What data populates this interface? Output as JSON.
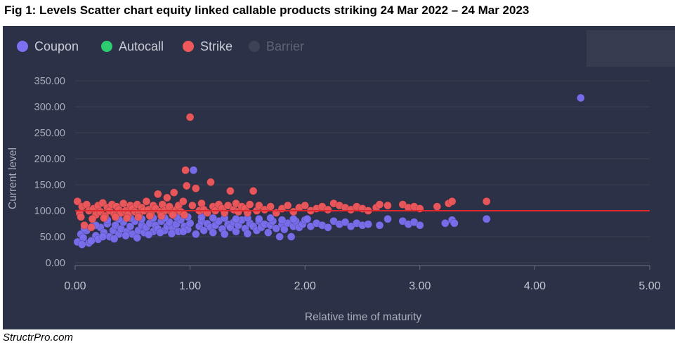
{
  "title": "Fig 1: Levels Scatter chart equity linked callable products striking 24 Mar 2022 – 24 Mar 2023",
  "footer": "StructrPro.com",
  "colors": {
    "coupon": "#7b70f0",
    "autocall": "#2ecc71",
    "strike": "#f0595c",
    "barrier": "#3d4356",
    "reference_line": "#e0282e"
  },
  "chart_data": {
    "type": "scatter",
    "xlabel": "Relative time of maturity",
    "ylabel": "Current level",
    "xlim": [
      0,
      5
    ],
    "ylim": [
      0,
      350
    ],
    "x_ticks": [
      "0.00",
      "1.00",
      "2.00",
      "3.00",
      "4.00",
      "5.00"
    ],
    "y_ticks": [
      "0.00",
      "50.00",
      "100.00",
      "150.00",
      "200.00",
      "250.00",
      "300.00",
      "350.00"
    ],
    "grid": true,
    "legend": {
      "position": "top-left",
      "entries": [
        {
          "name": "Coupon",
          "color": "#7b70f0",
          "active": true
        },
        {
          "name": "Autocall",
          "color": "#2ecc71",
          "active": true
        },
        {
          "name": "Strike",
          "color": "#f0595c",
          "active": true
        },
        {
          "name": "Barrier",
          "color": "#3d4356",
          "active": false
        }
      ]
    },
    "reference_line": {
      "y": 100
    },
    "series": [
      {
        "name": "Coupon",
        "points": [
          [
            0.02,
            40
          ],
          [
            0.05,
            55
          ],
          [
            0.07,
            48
          ],
          [
            0.1,
            62
          ],
          [
            0.12,
            38
          ],
          [
            0.15,
            70
          ],
          [
            0.18,
            52
          ],
          [
            0.2,
            45
          ],
          [
            0.22,
            68
          ],
          [
            0.25,
            58
          ],
          [
            0.28,
            75
          ],
          [
            0.3,
            50
          ],
          [
            0.33,
            62
          ],
          [
            0.35,
            72
          ],
          [
            0.38,
            55
          ],
          [
            0.4,
            65
          ],
          [
            0.42,
            78
          ],
          [
            0.45,
            60
          ],
          [
            0.48,
            70
          ],
          [
            0.5,
            55
          ],
          [
            0.52,
            80
          ],
          [
            0.55,
            62
          ],
          [
            0.58,
            72
          ],
          [
            0.6,
            58
          ],
          [
            0.62,
            68
          ],
          [
            0.65,
            76
          ],
          [
            0.68,
            60
          ],
          [
            0.7,
            72
          ],
          [
            0.72,
            65
          ],
          [
            0.75,
            80
          ],
          [
            0.78,
            62
          ],
          [
            0.8,
            70
          ],
          [
            0.82,
            78
          ],
          [
            0.85,
            66
          ],
          [
            0.88,
            74
          ],
          [
            0.9,
            60
          ],
          [
            0.92,
            82
          ],
          [
            0.95,
            70
          ],
          [
            0.98,
            64
          ],
          [
            1.0,
            76
          ],
          [
            1.03,
            178
          ],
          [
            1.05,
            55
          ],
          [
            1.08,
            70
          ],
          [
            1.1,
            80
          ],
          [
            1.12,
            62
          ],
          [
            1.15,
            75
          ],
          [
            1.18,
            68
          ],
          [
            1.2,
            58
          ],
          [
            1.22,
            72
          ],
          [
            1.25,
            80
          ],
          [
            1.28,
            65
          ],
          [
            1.3,
            55
          ],
          [
            1.33,
            74
          ],
          [
            1.35,
            68
          ],
          [
            1.38,
            78
          ],
          [
            1.4,
            60
          ],
          [
            1.42,
            72
          ],
          [
            1.45,
            82
          ],
          [
            1.48,
            66
          ],
          [
            1.5,
            56
          ],
          [
            1.52,
            76
          ],
          [
            1.55,
            70
          ],
          [
            1.58,
            62
          ],
          [
            1.6,
            80
          ],
          [
            1.62,
            68
          ],
          [
            1.65,
            74
          ],
          [
            1.68,
            58
          ],
          [
            1.7,
            72
          ],
          [
            1.72,
            80
          ],
          [
            1.75,
            66
          ],
          [
            1.78,
            50
          ],
          [
            1.8,
            74
          ],
          [
            1.82,
            64
          ],
          [
            1.85,
            76
          ],
          [
            1.88,
            50
          ],
          [
            1.9,
            70
          ],
          [
            1.92,
            80
          ],
          [
            1.95,
            68
          ],
          [
            1.98,
            74
          ],
          [
            2.0,
            82
          ],
          [
            2.05,
            70
          ],
          [
            2.1,
            76
          ],
          [
            2.15,
            72
          ],
          [
            2.2,
            68
          ],
          [
            2.25,
            80
          ],
          [
            2.3,
            74
          ],
          [
            2.35,
            78
          ],
          [
            2.4,
            70
          ],
          [
            2.45,
            76
          ],
          [
            2.5,
            72
          ],
          [
            2.55,
            74
          ],
          [
            2.65,
            72
          ],
          [
            2.72,
            84
          ],
          [
            2.85,
            80
          ],
          [
            2.9,
            74
          ],
          [
            2.95,
            78
          ],
          [
            3.0,
            72
          ],
          [
            3.22,
            76
          ],
          [
            3.28,
            82
          ],
          [
            3.3,
            76
          ],
          [
            3.58,
            84
          ],
          [
            4.4,
            317
          ],
          [
            0.06,
            35
          ],
          [
            0.14,
            42
          ],
          [
            0.24,
            50
          ],
          [
            0.34,
            46
          ],
          [
            0.44,
            52
          ],
          [
            0.54,
            48
          ],
          [
            0.64,
            54
          ],
          [
            0.74,
            58
          ],
          [
            0.84,
            56
          ],
          [
            0.94,
            60
          ],
          [
            0.08,
            66
          ],
          [
            0.18,
            72
          ],
          [
            0.28,
            82
          ],
          [
            0.38,
            84
          ],
          [
            0.48,
            86
          ],
          [
            0.58,
            84
          ],
          [
            0.68,
            86
          ],
          [
            0.78,
            86
          ],
          [
            0.88,
            88
          ],
          [
            0.98,
            88
          ],
          [
            1.1,
            88
          ],
          [
            1.2,
            86
          ],
          [
            1.3,
            86
          ],
          [
            1.4,
            84
          ],
          [
            1.5,
            86
          ],
          [
            1.6,
            84
          ],
          [
            1.7,
            86
          ],
          [
            1.8,
            82
          ],
          [
            1.9,
            84
          ],
          [
            2.02,
            84
          ]
        ]
      },
      {
        "name": "Strike",
        "points": [
          [
            0.02,
            118
          ],
          [
            0.04,
            95
          ],
          [
            0.06,
            108
          ],
          [
            0.08,
            72
          ],
          [
            0.1,
            112
          ],
          [
            0.12,
            100
          ],
          [
            0.14,
            68
          ],
          [
            0.16,
            104
          ],
          [
            0.18,
            92
          ],
          [
            0.2,
            110
          ],
          [
            0.22,
            98
          ],
          [
            0.24,
            115
          ],
          [
            0.26,
            90
          ],
          [
            0.28,
            106
          ],
          [
            0.3,
            100
          ],
          [
            0.32,
            112
          ],
          [
            0.34,
            94
          ],
          [
            0.36,
            108
          ],
          [
            0.38,
            102
          ],
          [
            0.4,
            96
          ],
          [
            0.42,
            114
          ],
          [
            0.44,
            100
          ],
          [
            0.46,
            92
          ],
          [
            0.48,
            110
          ],
          [
            0.5,
            104
          ],
          [
            0.52,
            98
          ],
          [
            0.54,
            112
          ],
          [
            0.56,
            95
          ],
          [
            0.58,
            106
          ],
          [
            0.6,
            100
          ],
          [
            0.62,
            118
          ],
          [
            0.64,
            102
          ],
          [
            0.66,
            94
          ],
          [
            0.68,
            110
          ],
          [
            0.7,
            104
          ],
          [
            0.72,
            132
          ],
          [
            0.74,
            98
          ],
          [
            0.76,
            112
          ],
          [
            0.78,
            100
          ],
          [
            0.8,
            125
          ],
          [
            0.82,
            108
          ],
          [
            0.84,
            96
          ],
          [
            0.86,
            135
          ],
          [
            0.88,
            102
          ],
          [
            0.9,
            110
          ],
          [
            0.92,
            98
          ],
          [
            0.94,
            118
          ],
          [
            0.96,
            178
          ],
          [
            0.97,
            148
          ],
          [
            1.0,
            280
          ],
          [
            1.02,
            110
          ],
          [
            1.05,
            143
          ],
          [
            1.08,
            100
          ],
          [
            1.1,
            114
          ],
          [
            1.12,
            102
          ],
          [
            1.15,
            96
          ],
          [
            1.18,
            155
          ],
          [
            1.2,
            108
          ],
          [
            1.22,
            100
          ],
          [
            1.25,
            112
          ],
          [
            1.28,
            104
          ],
          [
            1.3,
            96
          ],
          [
            1.33,
            110
          ],
          [
            1.35,
            138
          ],
          [
            1.38,
            102
          ],
          [
            1.4,
            114
          ],
          [
            1.42,
            98
          ],
          [
            1.45,
            108
          ],
          [
            1.48,
            104
          ],
          [
            1.5,
            96
          ],
          [
            1.52,
            112
          ],
          [
            1.55,
            138
          ],
          [
            1.58,
            100
          ],
          [
            1.6,
            110
          ],
          [
            1.65,
            102
          ],
          [
            1.7,
            108
          ],
          [
            1.75,
            96
          ],
          [
            1.8,
            104
          ],
          [
            1.85,
            110
          ],
          [
            1.9,
            98
          ],
          [
            1.95,
            106
          ],
          [
            2.0,
            110
          ],
          [
            2.05,
            100
          ],
          [
            2.1,
            104
          ],
          [
            2.15,
            108
          ],
          [
            2.2,
            102
          ],
          [
            2.25,
            114
          ],
          [
            2.3,
            110
          ],
          [
            2.35,
            106
          ],
          [
            2.4,
            102
          ],
          [
            2.45,
            108
          ],
          [
            2.5,
            104
          ],
          [
            2.55,
            100
          ],
          [
            2.62,
            106
          ],
          [
            2.65,
            112
          ],
          [
            2.72,
            110
          ],
          [
            2.85,
            112
          ],
          [
            2.9,
            106
          ],
          [
            2.95,
            108
          ],
          [
            3.0,
            104
          ],
          [
            3.15,
            108
          ],
          [
            3.25,
            114
          ],
          [
            3.28,
            118
          ],
          [
            3.58,
            118
          ],
          [
            0.05,
            88
          ],
          [
            0.15,
            84
          ],
          [
            0.25,
            86
          ],
          [
            0.35,
            88
          ],
          [
            0.45,
            86
          ],
          [
            0.55,
            88
          ],
          [
            0.65,
            90
          ],
          [
            0.75,
            90
          ],
          [
            0.85,
            92
          ],
          [
            0.95,
            92
          ]
        ]
      }
    ]
  }
}
